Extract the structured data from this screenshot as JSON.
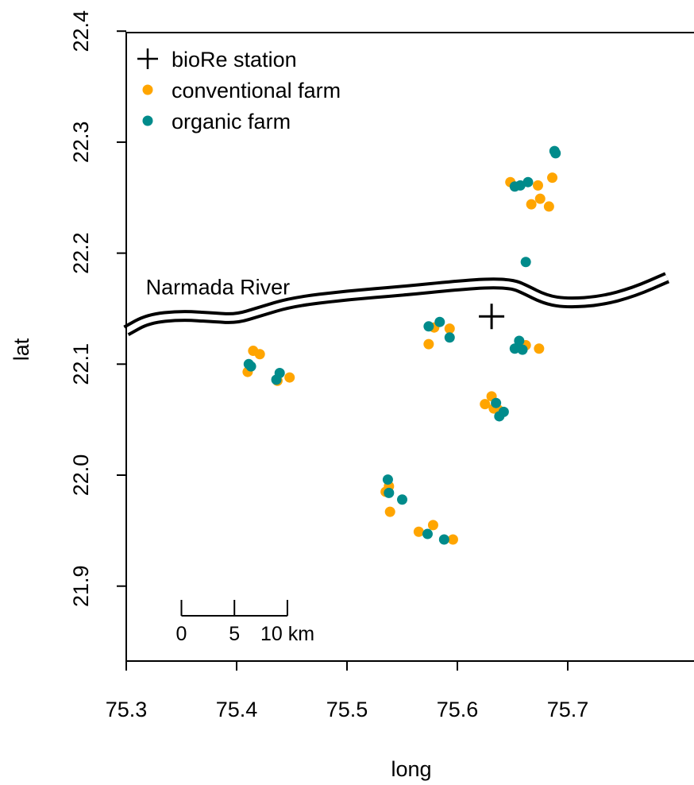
{
  "chart_data": {
    "type": "scatter",
    "xlabel": "long",
    "ylabel": "lat",
    "xlim": [
      75.3,
      75.79
    ],
    "ylim": [
      21.83,
      22.4
    ],
    "x_ticks": [
      "75.3",
      "75.4",
      "75.5",
      "75.6",
      "75.7"
    ],
    "y_ticks": [
      "21.9",
      "22.0",
      "22.1",
      "22.2",
      "22.3",
      "22.4"
    ],
    "legend": {
      "position": "top-left",
      "entries": [
        {
          "label": "bioRe station",
          "symbol": "plus",
          "color": "#000000"
        },
        {
          "label": "conventional farm",
          "symbol": "dot",
          "color": "#FFA500"
        },
        {
          "label": "organic farm",
          "symbol": "dot",
          "color": "#008B8B"
        }
      ]
    },
    "river": {
      "label": "Narmada River",
      "label_anchor": {
        "long": 75.383,
        "lat": 22.17
      },
      "path": [
        [
          75.3,
          22.13
        ],
        [
          75.32,
          22.141
        ],
        [
          75.35,
          22.144
        ],
        [
          75.38,
          22.142
        ],
        [
          75.4,
          22.141
        ],
        [
          75.42,
          22.147
        ],
        [
          75.45,
          22.156
        ],
        [
          75.5,
          22.162
        ],
        [
          75.55,
          22.166
        ],
        [
          75.6,
          22.171
        ],
        [
          75.63,
          22.173
        ],
        [
          75.65,
          22.172
        ],
        [
          75.66,
          22.168
        ],
        [
          75.68,
          22.158
        ],
        [
          75.7,
          22.155
        ],
        [
          75.73,
          22.157
        ],
        [
          75.76,
          22.165
        ],
        [
          75.79,
          22.178
        ]
      ]
    },
    "series": [
      {
        "name": "bioRe station",
        "points": [
          [
            75.631,
            22.143
          ]
        ]
      },
      {
        "name": "conventional farm",
        "points": [
          [
            75.415,
            22.112
          ],
          [
            75.421,
            22.109
          ],
          [
            75.41,
            22.093
          ],
          [
            75.448,
            22.088
          ],
          [
            75.437,
            22.085
          ],
          [
            75.535,
            21.985
          ],
          [
            75.538,
            21.99
          ],
          [
            75.539,
            21.967
          ],
          [
            75.565,
            21.949
          ],
          [
            75.578,
            21.955
          ],
          [
            75.596,
            21.942
          ],
          [
            75.574,
            22.118
          ],
          [
            75.579,
            22.133
          ],
          [
            75.593,
            22.132
          ],
          [
            75.625,
            22.064
          ],
          [
            75.631,
            22.071
          ],
          [
            75.633,
            22.06
          ],
          [
            75.637,
            22.059
          ],
          [
            75.657,
            22.117
          ],
          [
            75.662,
            22.117
          ],
          [
            75.674,
            22.114
          ],
          [
            75.648,
            22.264
          ],
          [
            75.673,
            22.261
          ],
          [
            75.686,
            22.268
          ],
          [
            75.675,
            22.249
          ],
          [
            75.667,
            22.244
          ],
          [
            75.683,
            22.242
          ]
        ]
      },
      {
        "name": "organic farm",
        "points": [
          [
            75.411,
            22.1
          ],
          [
            75.413,
            22.098
          ],
          [
            75.439,
            22.092
          ],
          [
            75.436,
            22.086
          ],
          [
            75.537,
            21.996
          ],
          [
            75.538,
            21.984
          ],
          [
            75.55,
            21.978
          ],
          [
            75.573,
            21.947
          ],
          [
            75.588,
            21.942
          ],
          [
            75.574,
            22.134
          ],
          [
            75.584,
            22.138
          ],
          [
            75.593,
            22.124
          ],
          [
            75.635,
            22.065
          ],
          [
            75.638,
            22.053
          ],
          [
            75.642,
            22.057
          ],
          [
            75.652,
            22.114
          ],
          [
            75.656,
            22.121
          ],
          [
            75.659,
            22.113
          ],
          [
            75.652,
            22.26
          ],
          [
            75.657,
            22.261
          ],
          [
            75.664,
            22.264
          ],
          [
            75.662,
            22.192
          ],
          [
            75.688,
            22.292
          ],
          [
            75.689,
            22.29
          ]
        ]
      }
    ],
    "scale_bar": {
      "unit": "km",
      "tick_labels": [
        "0",
        "5",
        "10 km"
      ],
      "long_start": 75.35,
      "long_end": 75.446,
      "lat": 21.92
    }
  }
}
